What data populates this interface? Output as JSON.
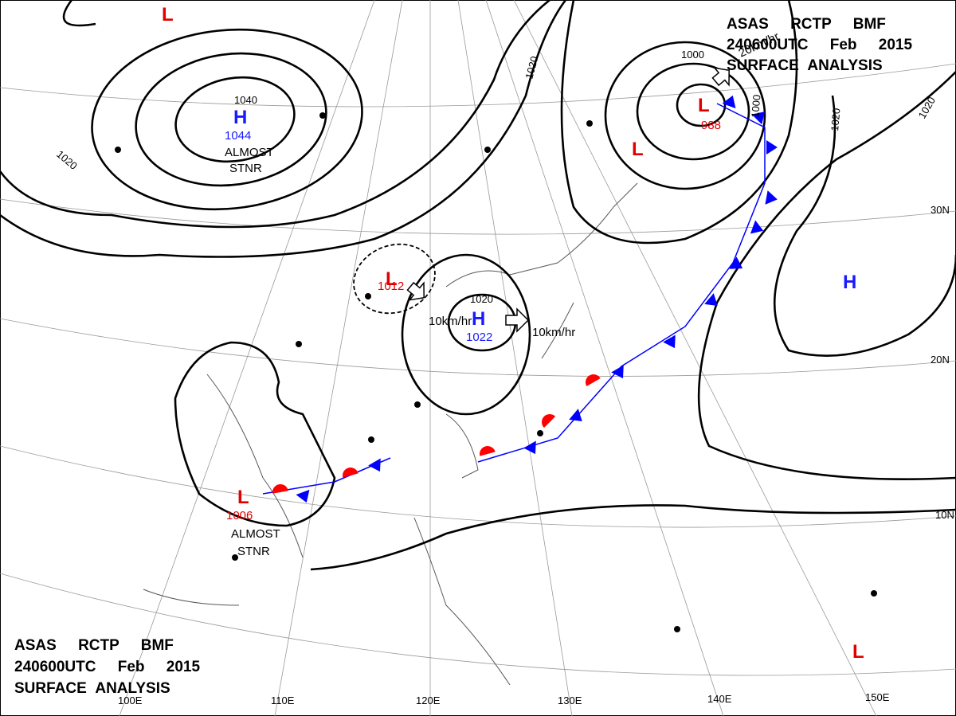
{
  "title_top": [
    "ASAS RCTP BMF",
    "240600UTC Feb 2015",
    "SURFACE ANALYSIS"
  ],
  "title_bottom": [
    "ASAS RCTP BMF",
    "240600UTC Feb 2015",
    "SURFACE ANALYSIS"
  ],
  "centers": [
    {
      "symbol": "H",
      "value": "1044",
      "color": "#1a1aff",
      "value_color": "#1a1aff"
    },
    {
      "symbol": "H",
      "value": "1022",
      "color": "#1a1aff",
      "value_color": "#1a1aff"
    },
    {
      "symbol": "H",
      "color": "#1a1aff"
    },
    {
      "symbol": "L",
      "value": "988",
      "color": "#e00000",
      "value_color": "#e00000"
    },
    {
      "symbol": "L",
      "color": "#e00000"
    },
    {
      "symbol": "L",
      "value": "1012",
      "color": "#e00000",
      "value_color": "#e00000"
    },
    {
      "symbol": "L",
      "value": "1006",
      "color": "#e00000",
      "value_color": "#e00000"
    },
    {
      "symbol": "L",
      "color": "#e00000"
    },
    {
      "symbol": "L",
      "color": "#e00000"
    }
  ],
  "isobar_labels": [
    "1040",
    "1020",
    "1020",
    "1000",
    "1000",
    "1020",
    "1020",
    "1020"
  ],
  "motion_labels": [
    "10km/hr",
    "10km/hr",
    "20km/hr"
  ],
  "notes": [
    [
      "ALMOST",
      "STNR"
    ],
    [
      "ALMOST",
      "STNR"
    ]
  ],
  "latitude_labels": [
    "30N",
    "20N",
    "10N"
  ],
  "longitude_labels": [
    "100E",
    "110E",
    "120E",
    "130E",
    "140E",
    "150E"
  ]
}
